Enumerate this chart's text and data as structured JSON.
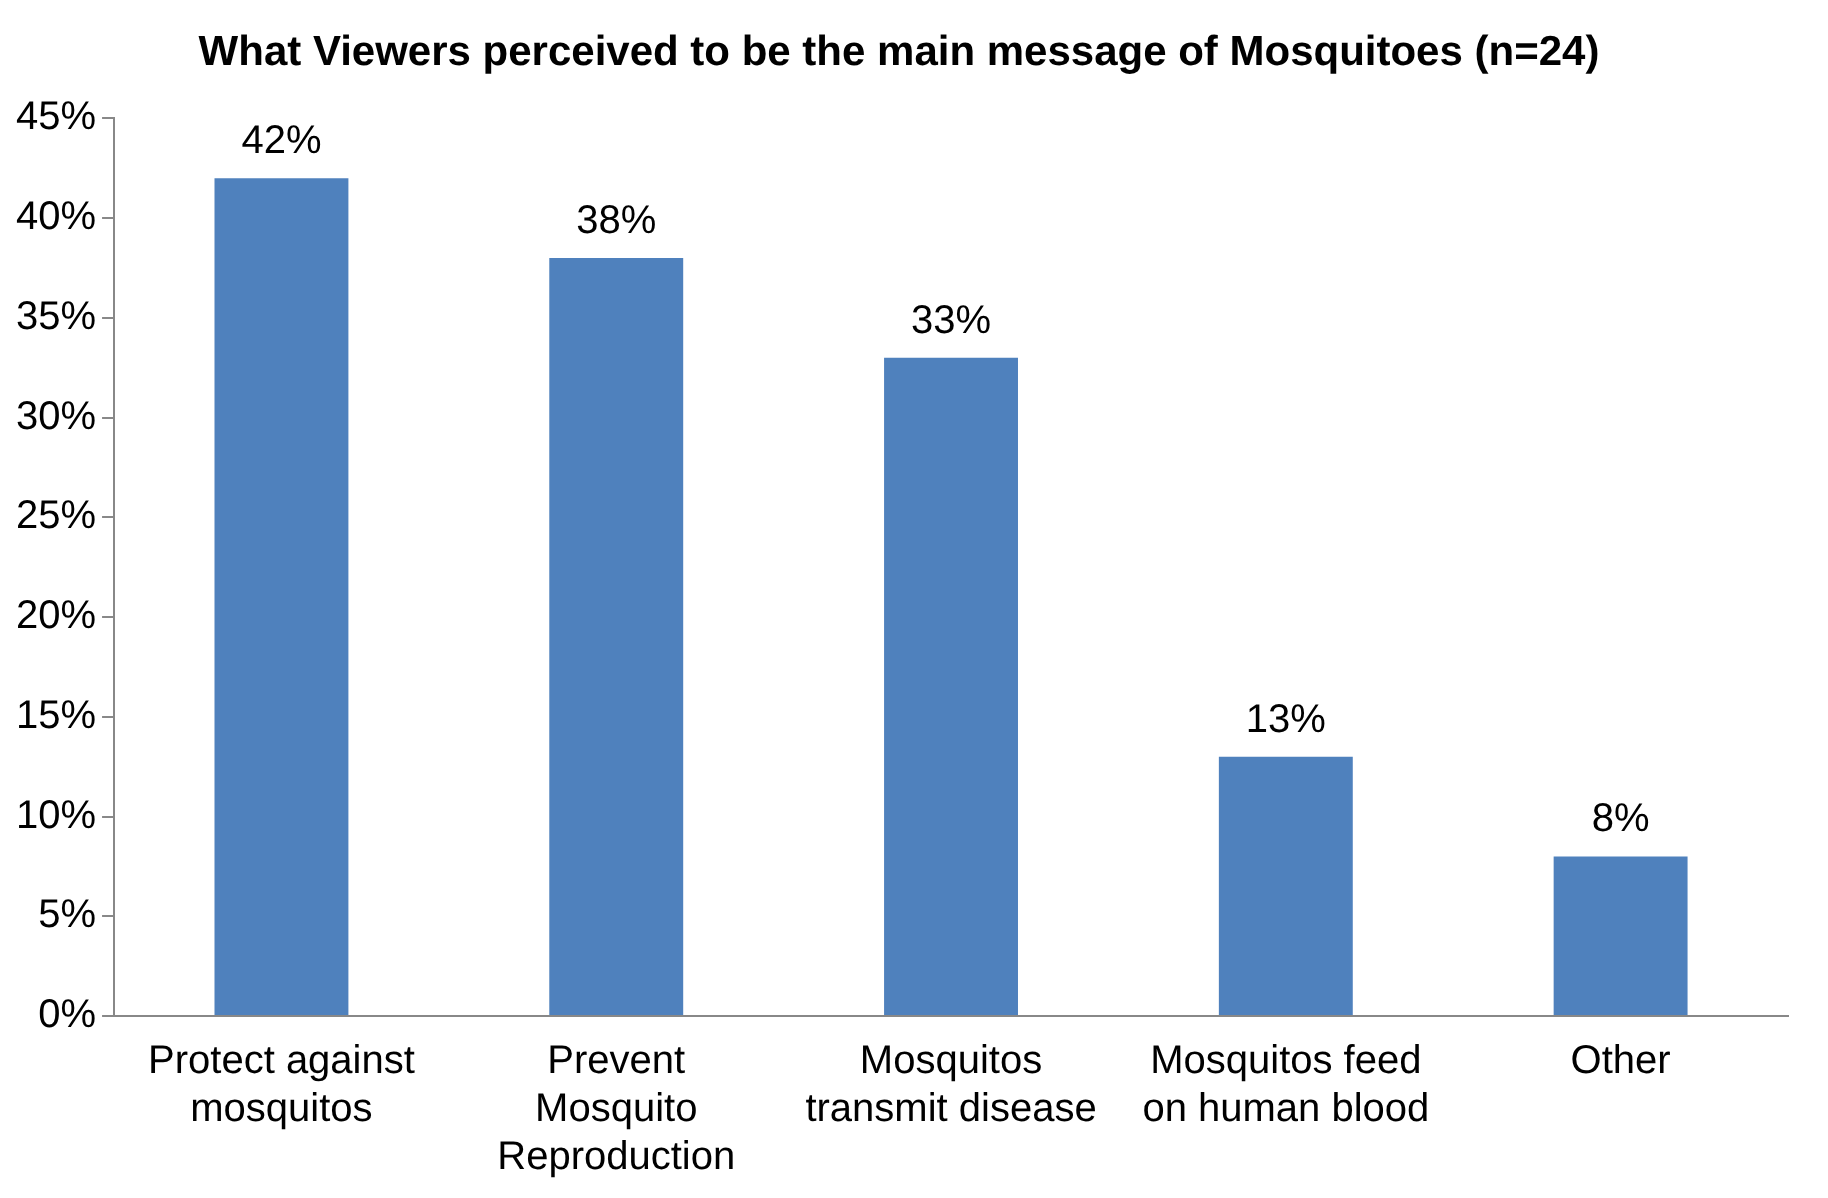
{
  "chart_data": {
    "type": "bar",
    "title": "What Viewers perceived to be the main message of Mosquitoes (n=24)",
    "categories": [
      "Protect against mosquitos",
      "Prevent Mosquito Reproduction",
      "Mosquitos transmit disease",
      "Mosquitos feed on human blood",
      "Other"
    ],
    "values": [
      42,
      38,
      33,
      13,
      8
    ],
    "value_labels": [
      "42%",
      "38%",
      "33%",
      "13%",
      "8%"
    ],
    "color": "#4f81bd",
    "ylim": [
      0,
      45
    ],
    "yticks": [
      {
        "value": 0,
        "label": "0%"
      },
      {
        "value": 5,
        "label": "5%"
      },
      {
        "value": 10,
        "label": "10%"
      },
      {
        "value": 15,
        "label": "15%"
      },
      {
        "value": 20,
        "label": "20%"
      },
      {
        "value": 25,
        "label": "25%"
      },
      {
        "value": 30,
        "label": "30%"
      },
      {
        "value": 35,
        "label": "35%"
      },
      {
        "value": 40,
        "label": "40%"
      },
      {
        "value": 45,
        "label": "45%"
      }
    ],
    "grid": false,
    "legend": false
  }
}
